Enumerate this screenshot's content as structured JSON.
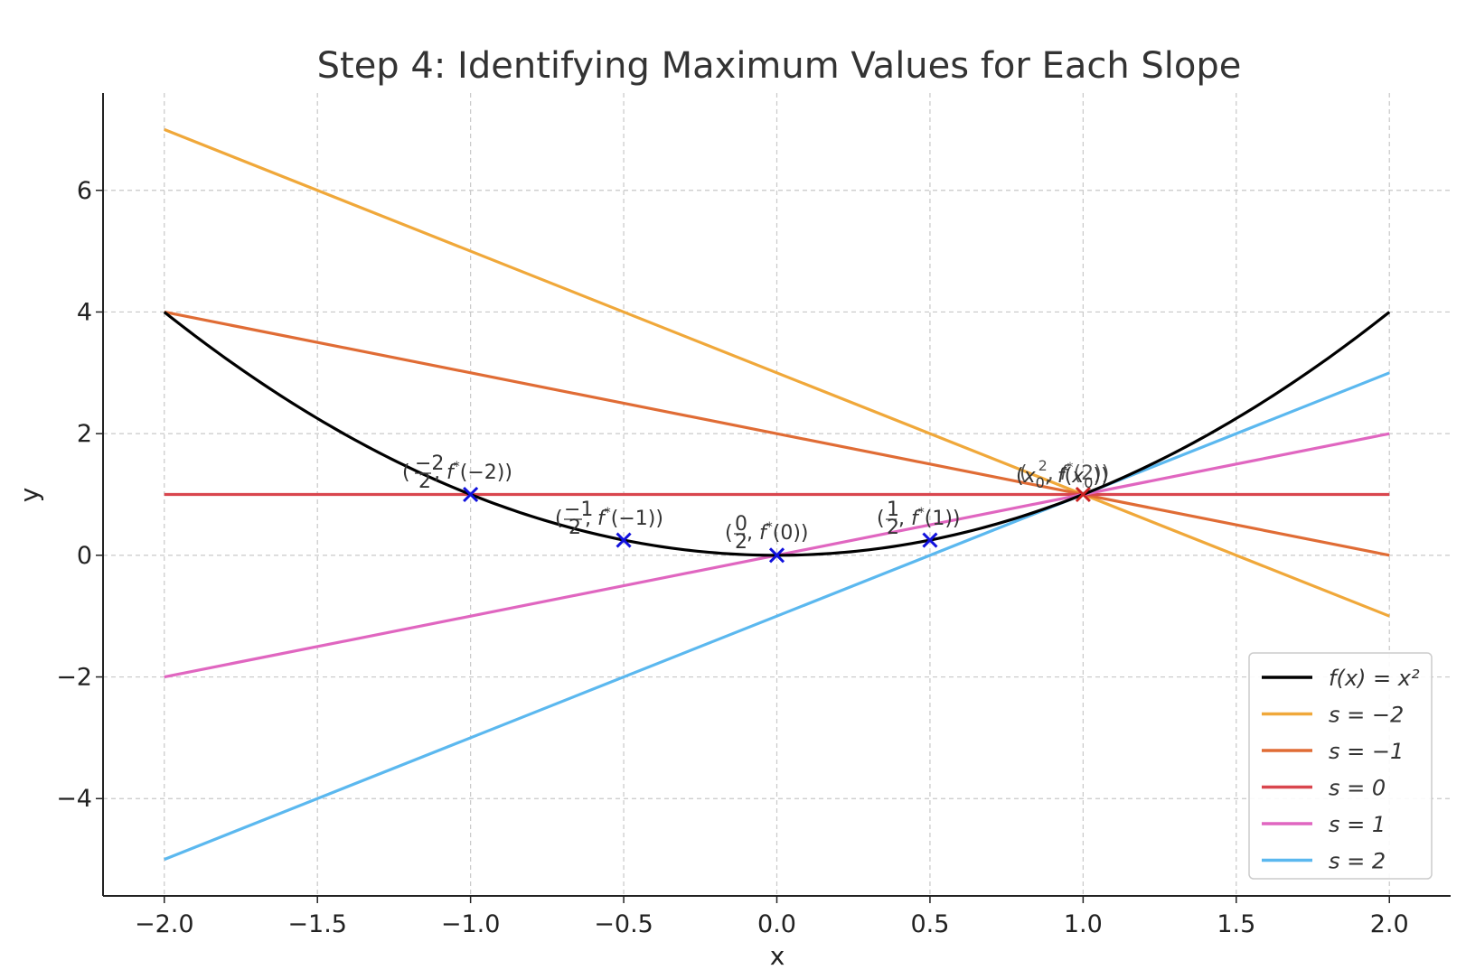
{
  "chart_data": {
    "type": "line",
    "title": "Step 4: Identifying Maximum Values for Each Slope",
    "xlabel": "x",
    "ylabel": "y",
    "xlim": [
      -2.2,
      2.2
    ],
    "ylim": [
      -5.6,
      7.6
    ],
    "grid": true,
    "grid_style": "dashed",
    "legend_position": "lower-right",
    "x_ticks": [
      -2.0,
      -1.5,
      -1.0,
      -0.5,
      0.0,
      0.5,
      1.0,
      1.5,
      2.0
    ],
    "x_tick_labels": [
      "−2.0",
      "−1.5",
      "−1.0",
      "−0.5",
      "0.0",
      "0.5",
      "1.0",
      "1.5",
      "2.0"
    ],
    "y_ticks": [
      -4,
      -2,
      0,
      2,
      4,
      6
    ],
    "y_tick_labels": [
      "−4",
      "−2",
      "0",
      "2",
      "4",
      "6"
    ],
    "curve": {
      "name": "f(x) = x²",
      "color": "#000000",
      "formula": "x^2",
      "x_range": [
        -2,
        2
      ]
    },
    "series": [
      {
        "name": "s = −2",
        "color": "#f0a83a",
        "x": [
          -2,
          2
        ],
        "y": [
          7,
          -1
        ]
      },
      {
        "name": "s = −1",
        "color": "#e06c35",
        "x": [
          -2,
          2
        ],
        "y": [
          4,
          0
        ]
      },
      {
        "name": "s = 0",
        "color": "#d9464e",
        "x": [
          -2,
          2
        ],
        "y": [
          1,
          1
        ]
      },
      {
        "name": "s = 1",
        "color": "#e066c0",
        "x": [
          -2,
          2
        ],
        "y": [
          -2,
          2
        ]
      },
      {
        "name": "s = 2",
        "color": "#5bb8ef",
        "x": [
          -2,
          2
        ],
        "y": [
          -5,
          3
        ]
      }
    ],
    "markers": [
      {
        "x": -1.0,
        "y": 1.0,
        "color": "#1111dd",
        "label": "(−2/2, f*(−2))"
      },
      {
        "x": -0.5,
        "y": 0.25,
        "color": "#1111dd",
        "label": "(−1/2, f*(−1))"
      },
      {
        "x": 0.0,
        "y": 0.0,
        "color": "#1111dd",
        "label": "(0/2, f*(0))"
      },
      {
        "x": 0.5,
        "y": 0.25,
        "color": "#1111dd",
        "label": "(1/2, f*(1))"
      },
      {
        "x": 1.0,
        "y": 1.0,
        "color": "#cc2222",
        "label": "(x₀, f(x₀)) / (2/2, f*(2))"
      }
    ]
  }
}
